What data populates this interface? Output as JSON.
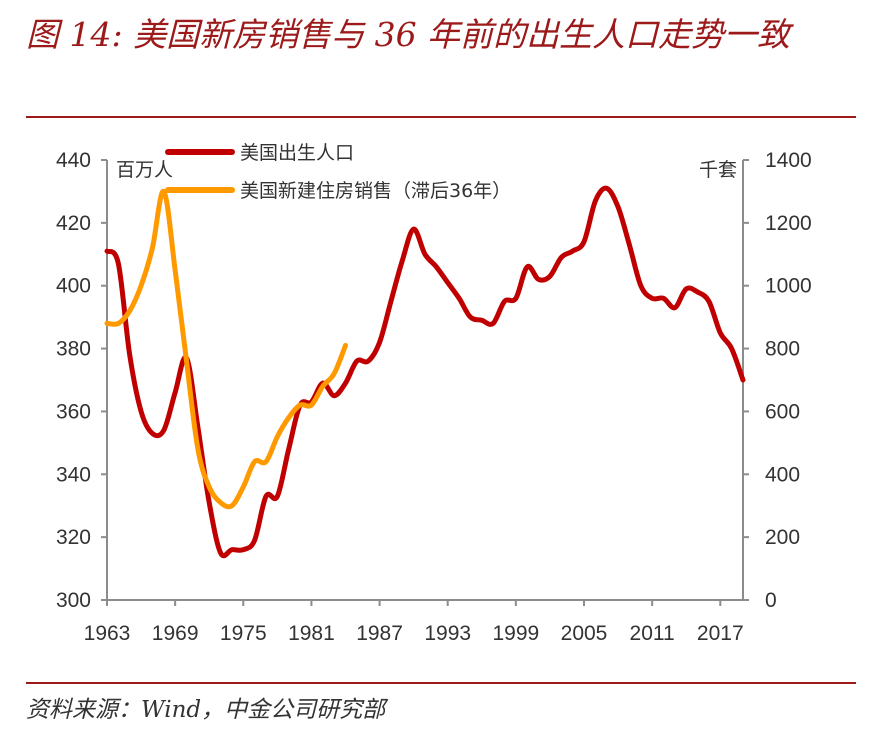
{
  "title": "图 14: 美国新房销售与 36 年前的出生人口走势一致",
  "source": "资料来源：Wind，中金公司研究部",
  "chart_data": {
    "type": "line",
    "x_ticks": [
      "1963",
      "1969",
      "1975",
      "1981",
      "1987",
      "1993",
      "1999",
      "2005",
      "2011",
      "2017"
    ],
    "xlim": [
      1963,
      2019
    ],
    "left_axis": {
      "unit": "百万人",
      "ylim": [
        300,
        440
      ],
      "ticks": [
        "300",
        "320",
        "340",
        "360",
        "380",
        "400",
        "420",
        "440"
      ]
    },
    "right_axis": {
      "unit": "千套",
      "ylim": [
        0,
        1400
      ],
      "ticks": [
        "0",
        "200",
        "400",
        "600",
        "800",
        "1000",
        "1200",
        "1400"
      ]
    },
    "legend_position": "top-left",
    "colors": {
      "birth": "#c00000",
      "sales": "#ff9900",
      "axis": "#8c8c8c",
      "title": "#9c1a1a"
    },
    "series": [
      {
        "name": "美国出生人口",
        "axis": "left",
        "x": [
          1963,
          1964,
          1965,
          1966,
          1967,
          1968,
          1969,
          1970,
          1971,
          1972,
          1973,
          1974,
          1975,
          1976,
          1977,
          1978,
          1979,
          1980,
          1981,
          1982,
          1983,
          1984,
          1985,
          1986,
          1987,
          1988,
          1989,
          1990,
          1991,
          1992,
          1993,
          1994,
          1995,
          1996,
          1997,
          1998,
          1999,
          2000,
          2001,
          2002,
          2003,
          2004,
          2005,
          2006,
          2007,
          2008,
          2009,
          2010,
          2011,
          2012,
          2013,
          2014,
          2015,
          2016,
          2017,
          2018,
          2019
        ],
        "values": [
          411,
          407,
          378,
          360,
          353,
          354,
          366,
          377,
          355,
          331,
          315,
          316,
          316,
          319,
          333,
          333,
          348,
          362,
          363,
          369,
          365,
          369,
          376,
          376,
          382,
          395,
          408,
          418,
          410,
          406,
          401,
          396,
          390,
          389,
          388,
          395,
          396,
          406,
          402,
          403,
          409,
          411,
          414,
          427,
          431,
          425,
          413,
          400,
          396,
          396,
          393,
          399,
          398,
          395,
          385,
          380,
          370
        ]
      },
      {
        "name": "美国新建住房销售（滞后36年）",
        "axis": "right",
        "x": [
          1963,
          1964,
          1965,
          1966,
          1967,
          1968,
          1969,
          1970,
          1971,
          1972,
          1973,
          1974,
          1975,
          1976,
          1977,
          1978,
          1979,
          1980,
          1981,
          1982,
          1983,
          1984
        ],
        "values": [
          880,
          880,
          920,
          1000,
          1120,
          1300,
          1050,
          760,
          480,
          360,
          310,
          300,
          360,
          440,
          440,
          520,
          580,
          620,
          620,
          680,
          720,
          810
        ]
      }
    ]
  }
}
